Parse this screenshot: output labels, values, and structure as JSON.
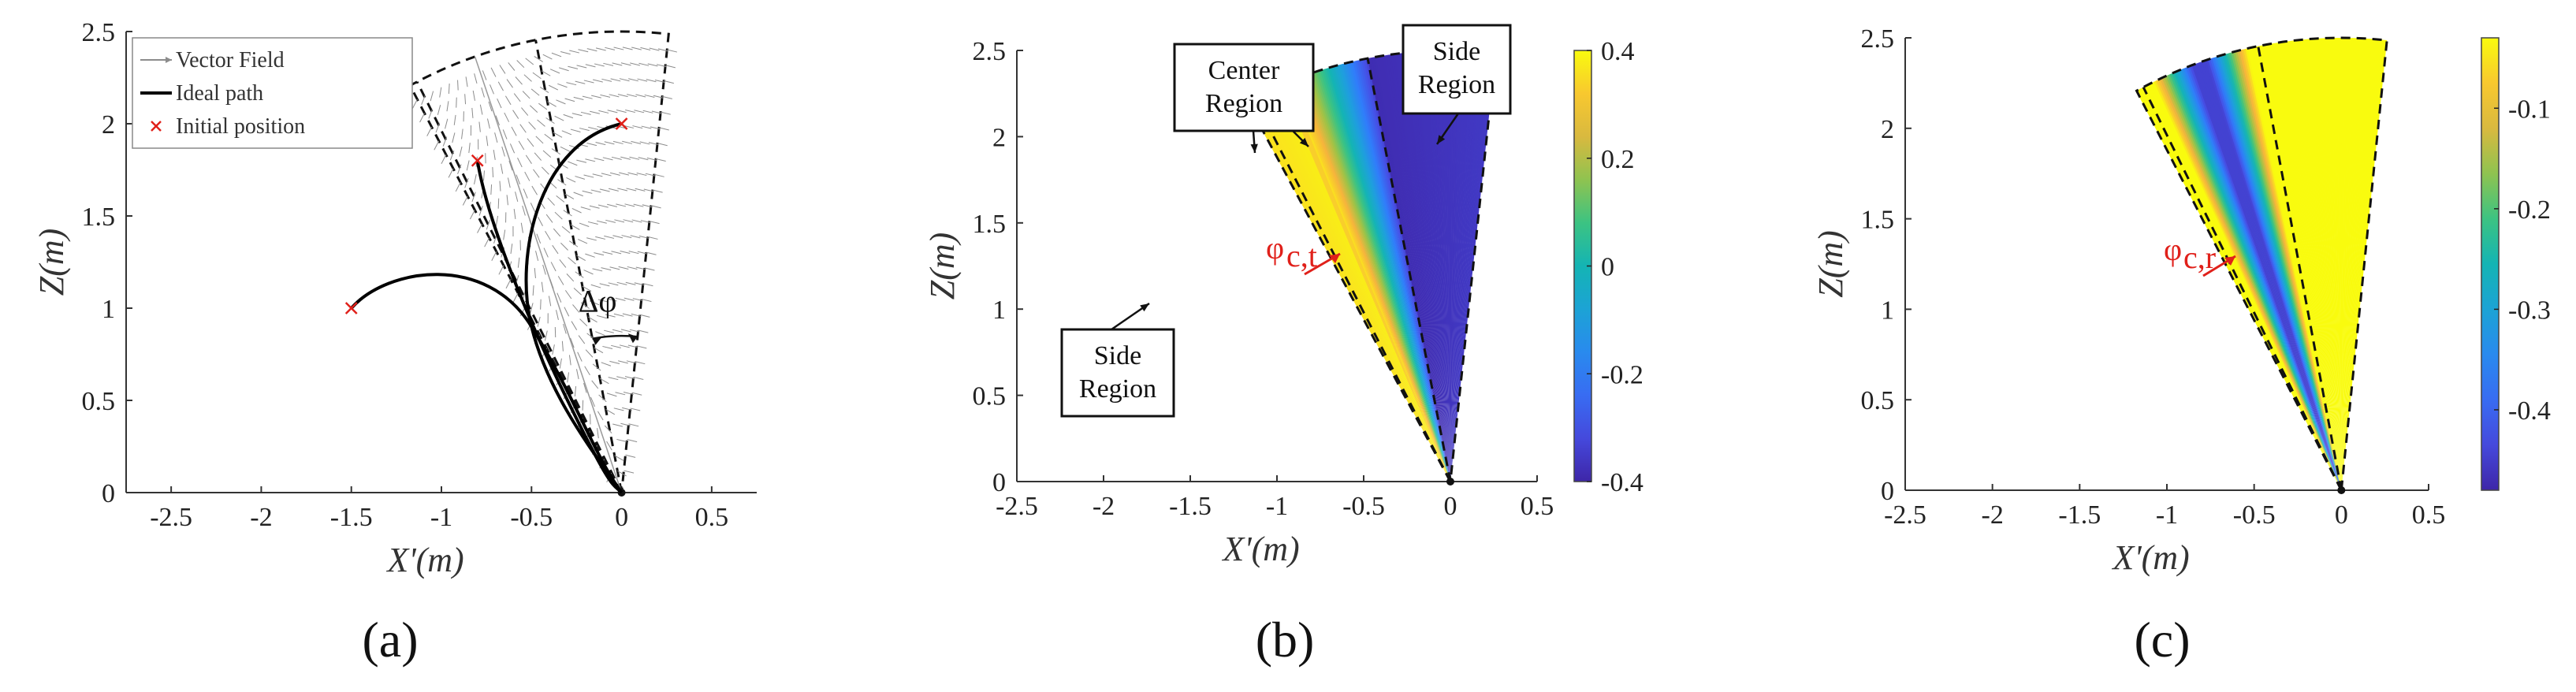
{
  "chart_data": [
    {
      "panel": "(a)",
      "type": "line",
      "subtype": "vector-field-with-paths",
      "xlabel": "X'(m)",
      "ylabel": "Z(m)",
      "xlim": [
        -2.75,
        0.75
      ],
      "ylim": [
        0,
        2.5
      ],
      "xticks": [
        "-2.5",
        "-2",
        "-1.5",
        "-1",
        "-0.5",
        "0",
        "0.5"
      ],
      "yticks": [
        "0",
        "0.5",
        "1",
        "1.5",
        "2",
        "2.5"
      ],
      "legend": {
        "placement": "top-left",
        "entries": [
          "Vector Field",
          "Ideal path",
          "Initial position"
        ]
      },
      "sector": {
        "radius": 2.5,
        "angle_left_deg": 118,
        "angle_right_deg": 84
      },
      "center_line_angle_deg": 109,
      "region_boundary_angles_deg": [
        101,
        117
      ],
      "initial_positions": [
        {
          "x": -1.5,
          "z": 1.0
        },
        {
          "x": -0.8,
          "z": 1.8
        },
        {
          "x": 0.0,
          "z": 2.0
        }
      ],
      "annotation": "Δφ",
      "colors": {
        "vector_field": "#8c8c8c",
        "ideal_path": "#000000",
        "initial_position": "#e0201a"
      }
    },
    {
      "panel": "(b)",
      "type": "heatmap",
      "xlabel": "X'(m)",
      "ylabel": "Z(m)",
      "xlim": [
        -2.5,
        0.5
      ],
      "ylim": [
        0,
        2.5
      ],
      "xticks": [
        "-2.5",
        "-2",
        "-1.5",
        "-1",
        "-0.5",
        "0",
        "0.5"
      ],
      "yticks": [
        "0",
        "0.5",
        "1",
        "1.5",
        "2",
        "2.5"
      ],
      "colorbar": {
        "min": -0.4,
        "max": 0.4,
        "ticks": [
          "0.4",
          "0.2",
          "0",
          "-0.2",
          "-0.4"
        ]
      },
      "sector": {
        "radius": 2.5,
        "angle_left_deg": 118,
        "angle_right_deg": 84
      },
      "region_boundary_angles_deg": [
        101,
        117
      ],
      "callouts": [
        "Center\nRegion",
        "Side\nRegion",
        "Side\nRegion"
      ],
      "annotation": "φc,t"
    },
    {
      "panel": "(c)",
      "type": "heatmap",
      "xlabel": "X'(m)",
      "ylabel": "Z(m)",
      "xlim": [
        -2.5,
        0.5
      ],
      "ylim": [
        0,
        2.5
      ],
      "xticks": [
        "-2.5",
        "-2",
        "-1.5",
        "-1",
        "-0.5",
        "0",
        "0.5"
      ],
      "yticks": [
        "0",
        "0.5",
        "1",
        "1.5",
        "2",
        "2.5"
      ],
      "colorbar": {
        "min": -0.48,
        "max": -0.03,
        "ticks": [
          "-0.1",
          "-0.2",
          "-0.3",
          "-0.4"
        ]
      },
      "sector": {
        "radius": 2.5,
        "angle_left_deg": 118,
        "angle_right_deg": 84
      },
      "region_boundary_angles_deg": [
        101,
        117
      ],
      "annotation": "φc,r"
    }
  ],
  "captions": [
    "(a)",
    "(b)",
    "(c)"
  ]
}
